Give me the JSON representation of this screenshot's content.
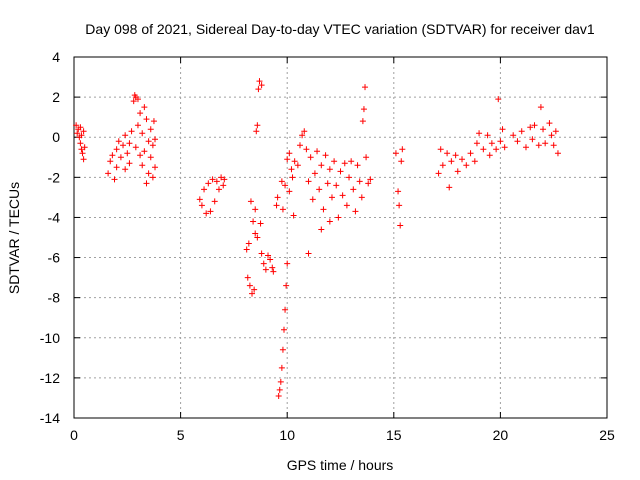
{
  "chart_data": {
    "type": "scatter",
    "title": "Day 098 of 2021, Sidereal Day-to-day VTEC variation (SDTVAR) for receiver dav1",
    "xlabel": "GPS time / hours",
    "ylabel": "SDTVAR / TECUs",
    "xlim": [
      0,
      25
    ],
    "ylim": [
      -14,
      4
    ],
    "xticks": [
      0,
      5,
      10,
      15,
      20,
      25
    ],
    "yticks": [
      -14,
      -12,
      -10,
      -8,
      -6,
      -4,
      -2,
      0,
      2,
      4
    ],
    "xtick_labels": [
      "0",
      "5",
      "10",
      "15",
      "20",
      "25"
    ],
    "ytick_labels": [
      "-14",
      "-12",
      "-10",
      "-8",
      "-6",
      "-4",
      "-2",
      "0",
      "2",
      "4"
    ],
    "grid": true,
    "marker": "plus",
    "series": [
      {
        "name": "dav1",
        "color": "#ff0000",
        "points": [
          [
            0.1,
            0.6
          ],
          [
            0.15,
            0.2
          ],
          [
            0.2,
            0.4
          ],
          [
            0.25,
            0.0
          ],
          [
            0.3,
            -0.3
          ],
          [
            0.3,
            0.5
          ],
          [
            0.35,
            -0.6
          ],
          [
            0.35,
            0.1
          ],
          [
            0.4,
            -0.8
          ],
          [
            0.45,
            -1.1
          ],
          [
            0.5,
            -0.5
          ],
          [
            0.45,
            0.3
          ],
          [
            1.6,
            -1.8
          ],
          [
            1.7,
            -1.2
          ],
          [
            1.8,
            -0.9
          ],
          [
            1.9,
            -2.1
          ],
          [
            2.0,
            -0.6
          ],
          [
            2.0,
            -1.5
          ],
          [
            2.1,
            -0.2
          ],
          [
            2.2,
            -1.0
          ],
          [
            2.3,
            -0.4
          ],
          [
            2.4,
            -1.6
          ],
          [
            2.4,
            0.1
          ],
          [
            2.5,
            -0.8
          ],
          [
            2.6,
            -0.3
          ],
          [
            2.6,
            -1.3
          ],
          [
            2.7,
            0.3
          ],
          [
            2.8,
            1.8
          ],
          [
            2.85,
            2.1
          ],
          [
            2.9,
            2.0
          ],
          [
            3.0,
            1.9
          ],
          [
            2.9,
            -0.5
          ],
          [
            3.0,
            0.6
          ],
          [
            3.1,
            -0.9
          ],
          [
            3.1,
            1.2
          ],
          [
            3.2,
            0.2
          ],
          [
            3.2,
            -1.4
          ],
          [
            3.3,
            1.5
          ],
          [
            3.3,
            -0.7
          ],
          [
            3.4,
            0.9
          ],
          [
            3.4,
            -2.3
          ],
          [
            3.5,
            -0.2
          ],
          [
            3.5,
            -1.8
          ],
          [
            3.6,
            0.4
          ],
          [
            3.6,
            -1.0
          ],
          [
            3.7,
            -0.4
          ],
          [
            3.7,
            -2.0
          ],
          [
            3.75,
            0.8
          ],
          [
            3.8,
            -1.5
          ],
          [
            3.8,
            -0.1
          ],
          [
            5.9,
            -3.1
          ],
          [
            6.0,
            -3.4
          ],
          [
            6.1,
            -2.6
          ],
          [
            6.2,
            -3.8
          ],
          [
            6.3,
            -2.3
          ],
          [
            6.4,
            -3.7
          ],
          [
            6.5,
            -2.1
          ],
          [
            6.6,
            -3.2
          ],
          [
            6.7,
            -2.2
          ],
          [
            6.8,
            -2.6
          ],
          [
            6.9,
            -2.0
          ],
          [
            7.0,
            -2.4
          ],
          [
            7.05,
            -2.1
          ],
          [
            8.1,
            -5.6
          ],
          [
            8.15,
            -7.0
          ],
          [
            8.2,
            -5.3
          ],
          [
            8.25,
            -7.4
          ],
          [
            8.3,
            -3.2
          ],
          [
            8.35,
            -7.8
          ],
          [
            8.4,
            -4.2
          ],
          [
            8.45,
            -7.6
          ],
          [
            8.5,
            -4.8
          ],
          [
            8.5,
            -3.6
          ],
          [
            8.55,
            0.3
          ],
          [
            8.6,
            0.6
          ],
          [
            8.6,
            -5.0
          ],
          [
            8.65,
            2.4
          ],
          [
            8.7,
            2.8
          ],
          [
            8.75,
            -4.3
          ],
          [
            8.8,
            2.6
          ],
          [
            8.8,
            -5.8
          ],
          [
            8.9,
            -6.3
          ],
          [
            9.0,
            -6.6
          ],
          [
            9.1,
            -5.9
          ],
          [
            9.2,
            -6.1
          ],
          [
            9.3,
            -6.5
          ],
          [
            9.35,
            -6.7
          ],
          [
            9.5,
            -3.4
          ],
          [
            9.55,
            -3.0
          ],
          [
            9.6,
            -12.9
          ],
          [
            9.65,
            -12.6
          ],
          [
            9.7,
            -12.2
          ],
          [
            9.75,
            -11.5
          ],
          [
            9.8,
            -10.6
          ],
          [
            9.85,
            -9.6
          ],
          [
            9.9,
            -8.6
          ],
          [
            9.95,
            -7.4
          ],
          [
            10.0,
            -6.3
          ],
          [
            9.75,
            -2.2
          ],
          [
            9.8,
            -3.6
          ],
          [
            9.9,
            -2.4
          ],
          [
            10.0,
            -1.1
          ],
          [
            10.1,
            -2.7
          ],
          [
            10.1,
            -0.8
          ],
          [
            10.2,
            -1.6
          ],
          [
            10.25,
            -2.0
          ],
          [
            10.3,
            -3.9
          ],
          [
            10.35,
            -1.2
          ],
          [
            10.5,
            -1.4
          ],
          [
            10.6,
            -0.4
          ],
          [
            10.7,
            0.1
          ],
          [
            10.8,
            0.3
          ],
          [
            10.9,
            -0.6
          ],
          [
            11.0,
            -2.2
          ],
          [
            11.0,
            -5.8
          ],
          [
            11.1,
            -1.0
          ],
          [
            11.2,
            -3.1
          ],
          [
            11.3,
            -1.8
          ],
          [
            11.4,
            -0.7
          ],
          [
            11.5,
            -2.6
          ],
          [
            11.6,
            -4.6
          ],
          [
            11.6,
            -1.4
          ],
          [
            11.7,
            -3.6
          ],
          [
            11.8,
            -0.9
          ],
          [
            11.9,
            -2.3
          ],
          [
            12.0,
            -4.2
          ],
          [
            12.0,
            -1.6
          ],
          [
            12.1,
            -3.0
          ],
          [
            12.2,
            -1.2
          ],
          [
            12.3,
            -2.4
          ],
          [
            12.4,
            -4.0
          ],
          [
            12.5,
            -1.7
          ],
          [
            12.6,
            -2.9
          ],
          [
            12.7,
            -1.3
          ],
          [
            12.8,
            -3.4
          ],
          [
            12.9,
            -2.0
          ],
          [
            13.0,
            -1.2
          ],
          [
            13.1,
            -2.6
          ],
          [
            13.2,
            -3.7
          ],
          [
            13.3,
            -1.4
          ],
          [
            13.4,
            -2.2
          ],
          [
            13.5,
            -3.0
          ],
          [
            13.55,
            0.8
          ],
          [
            13.6,
            1.4
          ],
          [
            13.65,
            2.5
          ],
          [
            13.7,
            -1.0
          ],
          [
            13.8,
            -2.3
          ],
          [
            13.9,
            -2.1
          ],
          [
            15.1,
            -0.8
          ],
          [
            15.2,
            -2.7
          ],
          [
            15.25,
            -3.4
          ],
          [
            15.3,
            -4.4
          ],
          [
            15.35,
            -1.2
          ],
          [
            15.4,
            -0.6
          ],
          [
            17.1,
            -1.8
          ],
          [
            17.2,
            -0.6
          ],
          [
            17.3,
            -1.4
          ],
          [
            17.5,
            -0.8
          ],
          [
            17.6,
            -2.5
          ],
          [
            17.7,
            -1.2
          ],
          [
            17.9,
            -0.9
          ],
          [
            18.0,
            -1.7
          ],
          [
            18.2,
            -1.1
          ],
          [
            18.4,
            -1.4
          ],
          [
            18.6,
            -0.8
          ],
          [
            18.8,
            -1.2
          ],
          [
            18.9,
            -0.3
          ],
          [
            19.0,
            0.2
          ],
          [
            19.2,
            -0.6
          ],
          [
            19.4,
            0.1
          ],
          [
            19.5,
            -0.9
          ],
          [
            19.6,
            -0.3
          ],
          [
            19.8,
            -0.6
          ],
          [
            19.9,
            1.9
          ],
          [
            20.0,
            -0.2
          ],
          [
            20.1,
            0.4
          ],
          [
            20.2,
            -0.5
          ],
          [
            20.6,
            0.1
          ],
          [
            20.8,
            -0.2
          ],
          [
            21.0,
            0.3
          ],
          [
            21.2,
            -0.5
          ],
          [
            21.4,
            0.5
          ],
          [
            21.5,
            -0.1
          ],
          [
            21.6,
            0.6
          ],
          [
            21.8,
            -0.4
          ],
          [
            21.9,
            1.5
          ],
          [
            22.0,
            0.4
          ],
          [
            22.1,
            -0.3
          ],
          [
            22.3,
            0.7
          ],
          [
            22.4,
            0.1
          ],
          [
            22.5,
            -0.4
          ],
          [
            22.6,
            0.3
          ],
          [
            22.7,
            -0.8
          ]
        ]
      }
    ]
  }
}
